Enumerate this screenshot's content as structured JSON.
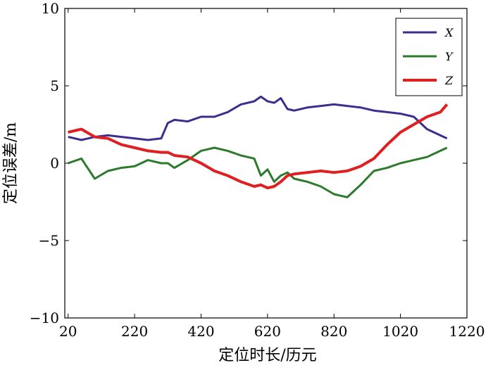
{
  "chart_data": {
    "type": "line",
    "title": "",
    "xlabel": "定位时长/历元",
    "ylabel": "定位误差/m",
    "xlim": [
      10,
      1220
    ],
    "ylim": [
      -10,
      10
    ],
    "xticks": [
      20,
      220,
      420,
      620,
      820,
      1020,
      1220
    ],
    "yticks": [
      -10,
      -5,
      0,
      5,
      10
    ],
    "xtick_labels": [
      "20",
      "220",
      "420",
      "620",
      "820",
      "1020",
      "1220"
    ],
    "ytick_labels": [
      "−10",
      "−5",
      "0",
      "5",
      "10"
    ],
    "grid": false,
    "legend_position": "top-right",
    "x": [
      20,
      60,
      100,
      140,
      180,
      220,
      260,
      300,
      320,
      340,
      380,
      420,
      460,
      500,
      540,
      580,
      600,
      620,
      640,
      660,
      680,
      700,
      740,
      780,
      820,
      860,
      900,
      940,
      980,
      1020,
      1060,
      1100,
      1140,
      1160
    ],
    "series": [
      {
        "name": "X",
        "color": "#3b2e8e",
        "values": [
          1.7,
          1.5,
          1.7,
          1.8,
          1.7,
          1.6,
          1.5,
          1.6,
          2.6,
          2.8,
          2.7,
          3.0,
          3.0,
          3.3,
          3.8,
          4.0,
          4.3,
          4.0,
          3.9,
          4.2,
          3.5,
          3.4,
          3.6,
          3.7,
          3.8,
          3.7,
          3.6,
          3.4,
          3.3,
          3.2,
          3.0,
          2.2,
          1.8,
          1.6
        ]
      },
      {
        "name": "Y",
        "color": "#2d7a2d",
        "values": [
          0.0,
          0.3,
          -1.0,
          -0.5,
          -0.3,
          -0.2,
          0.2,
          0.0,
          0.0,
          -0.3,
          0.2,
          0.8,
          1.0,
          0.8,
          0.5,
          0.3,
          -0.8,
          -0.4,
          -1.2,
          -0.8,
          -0.6,
          -1.0,
          -1.2,
          -1.5,
          -2.0,
          -2.2,
          -1.4,
          -0.5,
          -0.3,
          0.0,
          0.2,
          0.4,
          0.8,
          1.0
        ]
      },
      {
        "name": "Z",
        "color": "#e02020",
        "values": [
          2.0,
          2.2,
          1.7,
          1.6,
          1.2,
          1.0,
          0.8,
          0.7,
          0.7,
          0.5,
          0.4,
          0.0,
          -0.5,
          -0.8,
          -1.2,
          -1.5,
          -1.4,
          -1.6,
          -1.5,
          -1.2,
          -0.8,
          -0.7,
          -0.6,
          -0.5,
          -0.6,
          -0.5,
          -0.2,
          0.3,
          1.2,
          2.0,
          2.5,
          3.0,
          3.3,
          3.8
        ]
      }
    ],
    "annotations": []
  }
}
